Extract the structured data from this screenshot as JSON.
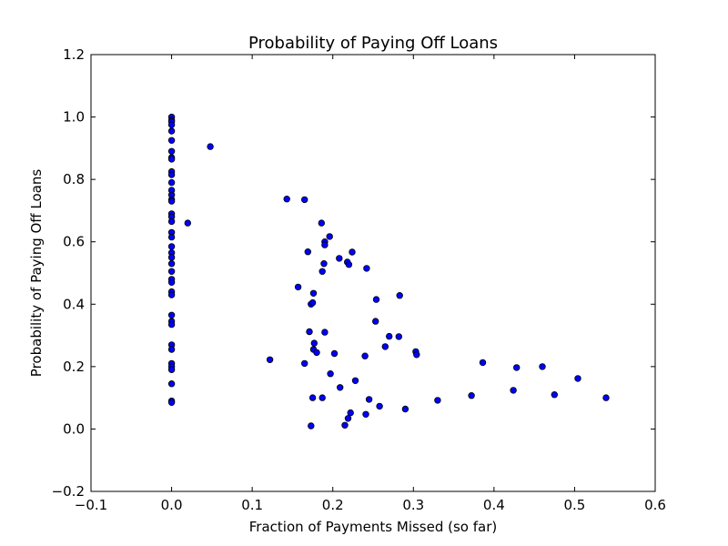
{
  "chart_data": {
    "type": "scatter",
    "title": "Probability of Paying Off Loans",
    "xlabel": "Fraction of Payments Missed (so far)",
    "ylabel": "Probability of Paying Off Loans",
    "xlim": [
      -0.1,
      0.6
    ],
    "ylim": [
      -0.2,
      1.2
    ],
    "x_ticks": [
      -0.1,
      0.0,
      0.1,
      0.2,
      0.3,
      0.4,
      0.5,
      0.6
    ],
    "x_tick_labels": [
      "−0.1",
      "0.0",
      "0.1",
      "0.2",
      "0.3",
      "0.4",
      "0.5",
      "0.6"
    ],
    "y_ticks": [
      -0.2,
      0.0,
      0.2,
      0.4,
      0.6,
      0.8,
      1.0,
      1.2
    ],
    "y_tick_labels": [
      "−0.2",
      "0.0",
      "0.2",
      "0.4",
      "0.6",
      "0.8",
      "1.0",
      "1.2"
    ],
    "grid": false,
    "marker_color": "#0000ff",
    "marker_edge_color": "#000000",
    "points": [
      [
        0.0,
        1.0
      ],
      [
        0.0,
        0.99
      ],
      [
        0.0,
        0.985
      ],
      [
        0.0,
        0.975
      ],
      [
        0.0,
        0.955
      ],
      [
        0.0,
        0.925
      ],
      [
        0.0,
        0.89
      ],
      [
        0.0,
        0.87
      ],
      [
        0.0,
        0.865
      ],
      [
        0.0,
        0.825
      ],
      [
        0.0,
        0.815
      ],
      [
        0.0,
        0.79
      ],
      [
        0.0,
        0.765
      ],
      [
        0.0,
        0.75
      ],
      [
        0.0,
        0.735
      ],
      [
        0.0,
        0.73
      ],
      [
        0.0,
        0.69
      ],
      [
        0.0,
        0.68
      ],
      [
        0.0,
        0.665
      ],
      [
        0.0,
        0.63
      ],
      [
        0.0,
        0.615
      ],
      [
        0.0,
        0.585
      ],
      [
        0.0,
        0.565
      ],
      [
        0.0,
        0.55
      ],
      [
        0.0,
        0.53
      ],
      [
        0.0,
        0.505
      ],
      [
        0.0,
        0.48
      ],
      [
        0.0,
        0.47
      ],
      [
        0.0,
        0.44
      ],
      [
        0.0,
        0.43
      ],
      [
        0.0,
        0.365
      ],
      [
        0.0,
        0.345
      ],
      [
        0.0,
        0.335
      ],
      [
        0.0,
        0.27
      ],
      [
        0.0,
        0.255
      ],
      [
        0.0,
        0.21
      ],
      [
        0.0,
        0.2
      ],
      [
        0.0,
        0.19
      ],
      [
        0.0,
        0.145
      ],
      [
        0.0,
        0.09
      ],
      [
        0.0,
        0.085
      ],
      [
        0.02,
        0.66
      ],
      [
        0.048,
        0.905
      ],
      [
        0.122,
        0.222
      ],
      [
        0.143,
        0.737
      ],
      [
        0.157,
        0.455
      ],
      [
        0.165,
        0.735
      ],
      [
        0.165,
        0.21
      ],
      [
        0.169,
        0.568
      ],
      [
        0.171,
        0.312
      ],
      [
        0.173,
        0.4
      ],
      [
        0.173,
        0.01
      ],
      [
        0.175,
        0.405
      ],
      [
        0.175,
        0.1
      ],
      [
        0.176,
        0.435
      ],
      [
        0.176,
        0.255
      ],
      [
        0.177,
        0.275
      ],
      [
        0.18,
        0.245
      ],
      [
        0.186,
        0.66
      ],
      [
        0.187,
        0.505
      ],
      [
        0.187,
        0.1
      ],
      [
        0.189,
        0.53
      ],
      [
        0.19,
        0.31
      ],
      [
        0.19,
        0.6
      ],
      [
        0.19,
        0.59
      ],
      [
        0.196,
        0.617
      ],
      [
        0.197,
        0.177
      ],
      [
        0.202,
        0.242
      ],
      [
        0.208,
        0.547
      ],
      [
        0.209,
        0.133
      ],
      [
        0.215,
        0.012
      ],
      [
        0.218,
        0.535
      ],
      [
        0.219,
        0.034
      ],
      [
        0.22,
        0.527
      ],
      [
        0.222,
        0.052
      ],
      [
        0.224,
        0.567
      ],
      [
        0.228,
        0.155
      ],
      [
        0.24,
        0.234
      ],
      [
        0.241,
        0.047
      ],
      [
        0.242,
        0.515
      ],
      [
        0.245,
        0.095
      ],
      [
        0.253,
        0.345
      ],
      [
        0.254,
        0.415
      ],
      [
        0.258,
        0.073
      ],
      [
        0.265,
        0.264
      ],
      [
        0.27,
        0.297
      ],
      [
        0.282,
        0.296
      ],
      [
        0.283,
        0.428
      ],
      [
        0.29,
        0.064
      ],
      [
        0.303,
        0.248
      ],
      [
        0.304,
        0.238
      ],
      [
        0.33,
        0.092
      ],
      [
        0.372,
        0.107
      ],
      [
        0.386,
        0.213
      ],
      [
        0.424,
        0.124
      ],
      [
        0.428,
        0.197
      ],
      [
        0.46,
        0.2
      ],
      [
        0.475,
        0.11
      ],
      [
        0.504,
        0.162
      ],
      [
        0.539,
        0.1
      ]
    ]
  }
}
